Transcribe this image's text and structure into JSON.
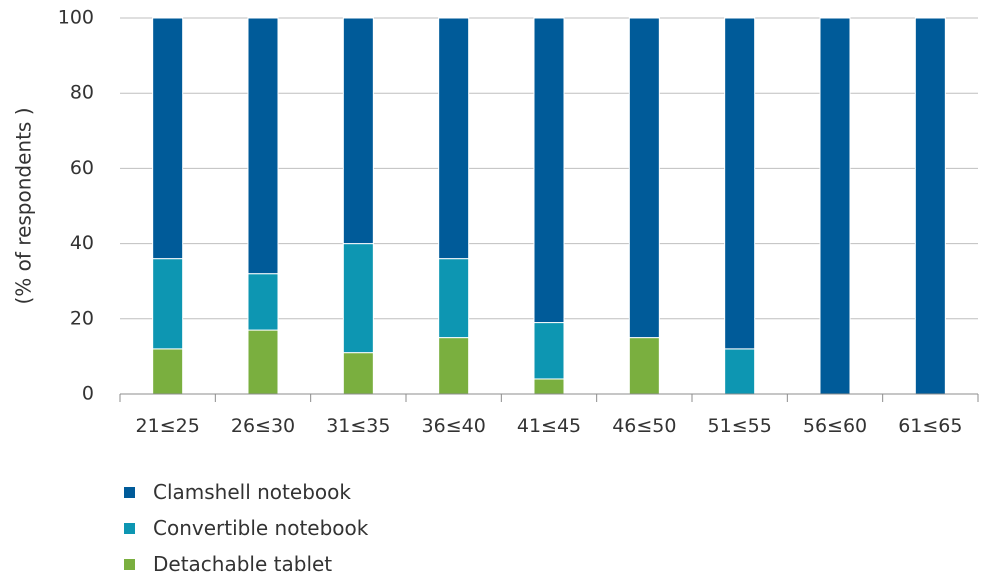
{
  "chart_data": {
    "type": "bar",
    "stacked": true,
    "categories": [
      "21≤25",
      "26≤30",
      "31≤35",
      "36≤40",
      "41≤45",
      "46≤50",
      "51≤55",
      "56≤60",
      "61≤65"
    ],
    "series": [
      {
        "name": "Detachable tablet",
        "color": "#7aaf3f",
        "values": [
          12,
          17,
          11,
          15,
          4,
          15,
          0,
          0,
          0
        ]
      },
      {
        "name": "Convertible notebook",
        "color": "#0d96b2",
        "values": [
          24,
          15,
          29,
          21,
          15,
          0,
          12,
          0,
          0
        ]
      },
      {
        "name": "Clamshell notebook",
        "color": "#005b99",
        "values": [
          64,
          68,
          60,
          64,
          81,
          85,
          88,
          100,
          100
        ]
      }
    ],
    "legend_order": [
      2,
      1,
      0
    ],
    "title": "",
    "xlabel": "",
    "ylabel": "(% of respondents )",
    "ylim": [
      0,
      100
    ],
    "yticks": [
      0,
      20,
      40,
      60,
      80,
      100
    ],
    "grid": true,
    "legend_position": "bottom-left"
  }
}
